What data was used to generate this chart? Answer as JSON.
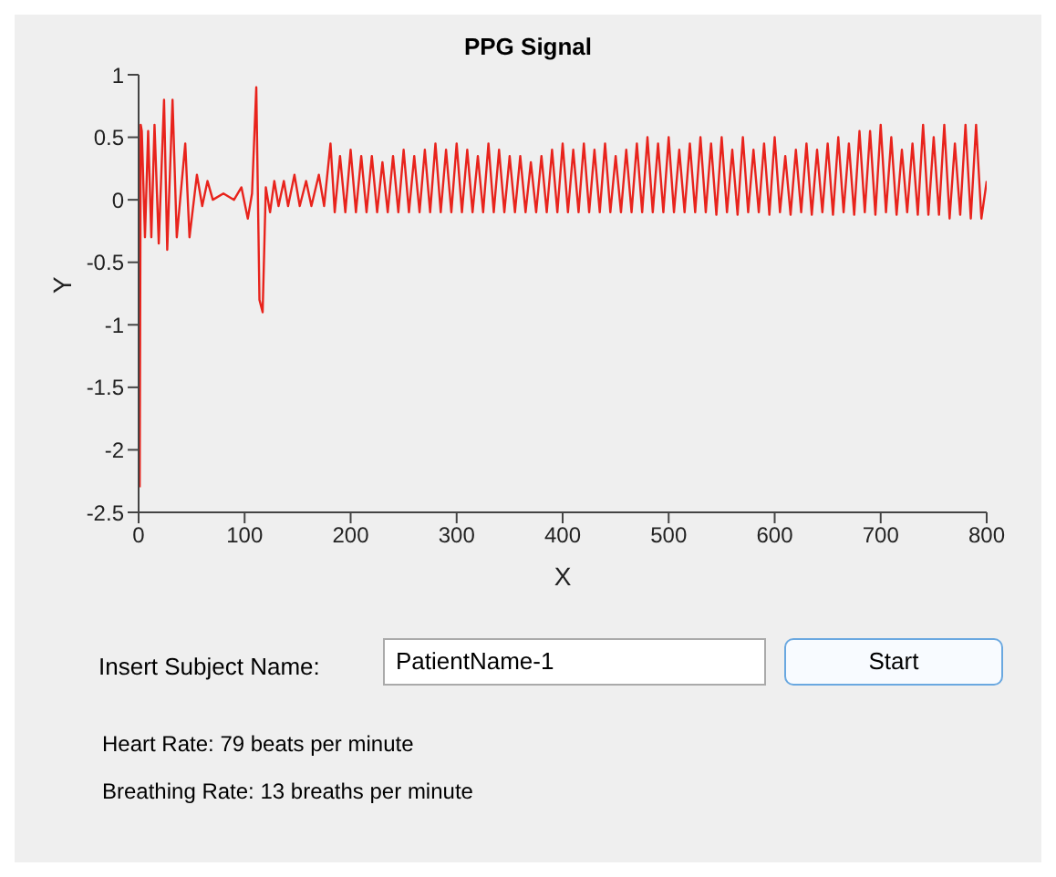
{
  "chart_data": {
    "type": "line",
    "title": "PPG Signal",
    "xlabel": "X",
    "ylabel": "Y",
    "xlim": [
      0,
      800
    ],
    "xticks": [
      0,
      100,
      200,
      300,
      400,
      500,
      600,
      700,
      800
    ],
    "ylim": [
      -2.5,
      1
    ],
    "yticks": [
      -2.5,
      -2,
      -1.5,
      -1,
      -0.5,
      0,
      0.5,
      1
    ],
    "grid": false,
    "legend": false,
    "marker": "none",
    "line_style": "solid",
    "annotations": [
      "Insert Subject Name:",
      "PatientName-1",
      "Start",
      "Heart Rate: 79 beats per minute",
      "Breathing Rate: 13 breaths per minute"
    ],
    "series": [
      {
        "color": "#e8231c",
        "x": [
          1,
          2,
          3,
          6,
          9,
          12,
          15,
          19,
          24,
          27,
          32,
          36,
          44,
          48,
          55,
          60,
          65,
          70,
          80,
          90,
          97,
          103,
          107,
          111,
          114,
          117,
          120,
          124,
          128,
          132,
          137,
          141,
          147,
          152,
          158,
          163,
          170,
          175,
          181,
          185,
          190,
          195,
          200,
          205,
          210,
          215,
          220,
          225,
          230,
          235,
          240,
          245,
          250,
          255,
          260,
          265,
          270,
          275,
          280,
          285,
          290,
          295,
          300,
          305,
          310,
          315,
          320,
          325,
          330,
          335,
          340,
          345,
          350,
          355,
          360,
          365,
          370,
          375,
          380,
          385,
          390,
          395,
          400,
          405,
          410,
          415,
          420,
          425,
          430,
          435,
          440,
          445,
          450,
          455,
          460,
          465,
          470,
          475,
          480,
          485,
          490,
          495,
          500,
          505,
          510,
          515,
          520,
          525,
          530,
          535,
          540,
          545,
          550,
          555,
          560,
          565,
          570,
          575,
          580,
          585,
          590,
          595,
          600,
          605,
          610,
          615,
          620,
          625,
          630,
          635,
          640,
          645,
          650,
          655,
          660,
          665,
          670,
          675,
          680,
          685,
          690,
          695,
          700,
          705,
          710,
          715,
          720,
          725,
          730,
          735,
          740,
          745,
          750,
          755,
          760,
          765,
          770,
          775,
          780,
          785,
          790,
          795,
          800
        ],
        "values": [
          -2.3,
          0.6,
          0.55,
          -0.3,
          0.55,
          -0.3,
          0.6,
          -0.35,
          0.8,
          -0.4,
          0.8,
          -0.3,
          0.45,
          -0.3,
          0.2,
          -0.05,
          0.15,
          0,
          0.05,
          0,
          0.1,
          -0.15,
          0.05,
          0.9,
          -0.8,
          -0.9,
          0.1,
          -0.1,
          0.15,
          -0.05,
          0.15,
          -0.05,
          0.2,
          -0.05,
          0.15,
          -0.05,
          0.2,
          -0.05,
          0.45,
          -0.1,
          0.35,
          -0.1,
          0.4,
          -0.1,
          0.35,
          -0.1,
          0.35,
          -0.1,
          0.3,
          -0.1,
          0.35,
          -0.1,
          0.4,
          -0.1,
          0.35,
          -0.1,
          0.4,
          -0.1,
          0.45,
          -0.1,
          0.4,
          -0.1,
          0.45,
          -0.1,
          0.4,
          -0.1,
          0.35,
          -0.1,
          0.45,
          -0.1,
          0.4,
          -0.1,
          0.35,
          -0.1,
          0.35,
          -0.1,
          0.3,
          -0.1,
          0.35,
          -0.1,
          0.4,
          -0.1,
          0.45,
          -0.1,
          0.4,
          -0.1,
          0.45,
          -0.1,
          0.4,
          -0.1,
          0.45,
          -0.1,
          0.35,
          -0.1,
          0.4,
          -0.1,
          0.45,
          -0.1,
          0.5,
          -0.1,
          0.45,
          -0.1,
          0.5,
          -0.1,
          0.4,
          -0.1,
          0.45,
          -0.1,
          0.5,
          -0.1,
          0.45,
          -0.12,
          0.5,
          -0.1,
          0.4,
          -0.12,
          0.5,
          -0.1,
          0.4,
          -0.1,
          0.45,
          -0.12,
          0.5,
          -0.1,
          0.35,
          -0.12,
          0.4,
          -0.1,
          0.45,
          -0.12,
          0.4,
          -0.1,
          0.45,
          -0.12,
          0.5,
          -0.1,
          0.45,
          -0.12,
          0.55,
          -0.1,
          0.55,
          -0.12,
          0.6,
          -0.1,
          0.5,
          -0.12,
          0.4,
          -0.1,
          0.45,
          -0.12,
          0.6,
          -0.12,
          0.5,
          -0.12,
          0.6,
          -0.15,
          0.45,
          -0.12,
          0.6,
          -0.15,
          0.6,
          -0.15,
          0.15
        ]
      }
    ]
  }
}
